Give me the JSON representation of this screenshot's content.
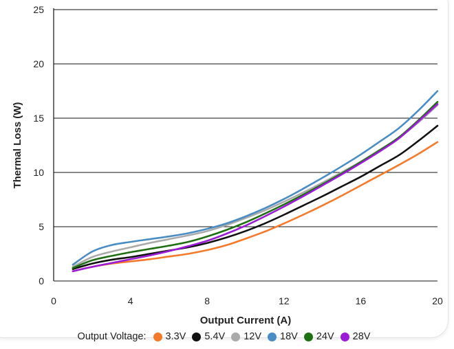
{
  "chart_data": {
    "type": "line",
    "xlabel": "Output Current (A)",
    "ylabel": "Thermal Loss (W)",
    "xlim": [
      0,
      20
    ],
    "ylim": [
      0,
      25
    ],
    "xticks": [
      "0",
      "4",
      "8",
      "12",
      "16",
      "20"
    ],
    "yticks": [
      "0",
      "5",
      "10",
      "15",
      "20",
      "25"
    ],
    "grid": "horizontal",
    "legend": {
      "title": "Output Voltage:",
      "placement": "bottom"
    },
    "x": [
      1,
      2,
      3,
      4,
      5,
      6,
      7,
      8,
      9,
      10,
      11,
      12,
      13,
      14,
      15,
      16,
      17,
      18,
      19,
      20
    ],
    "series": [
      {
        "name": "3.3V",
        "color": "#f47a2a",
        "values": [
          0.9,
          1.3,
          1.6,
          1.8,
          2.0,
          2.25,
          2.5,
          2.85,
          3.3,
          3.9,
          4.55,
          5.3,
          6.1,
          6.95,
          7.85,
          8.8,
          9.75,
          10.7,
          11.7,
          12.8
        ]
      },
      {
        "name": "5.4V",
        "color": "#111111",
        "values": [
          1.1,
          1.6,
          1.95,
          2.2,
          2.5,
          2.8,
          3.1,
          3.5,
          4.0,
          4.6,
          5.3,
          6.1,
          6.95,
          7.8,
          8.7,
          9.6,
          10.6,
          11.6,
          12.9,
          14.3
        ]
      },
      {
        "name": "12V",
        "color": "#aaaaaa",
        "values": [
          1.3,
          2.2,
          2.7,
          3.1,
          3.5,
          3.85,
          4.2,
          4.6,
          5.15,
          5.8,
          6.5,
          7.3,
          8.15,
          9.05,
          10.0,
          11.0,
          12.1,
          13.2,
          14.6,
          16.2
        ]
      },
      {
        "name": "18V",
        "color": "#4a8cc4",
        "values": [
          1.5,
          2.7,
          3.3,
          3.6,
          3.85,
          4.1,
          4.4,
          4.8,
          5.3,
          5.95,
          6.7,
          7.55,
          8.5,
          9.5,
          10.55,
          11.65,
          12.85,
          14.1,
          15.7,
          17.5
        ]
      },
      {
        "name": "24V",
        "color": "#1e6e12",
        "values": [
          1.2,
          1.9,
          2.3,
          2.65,
          2.95,
          3.25,
          3.6,
          4.1,
          4.7,
          5.4,
          6.2,
          7.05,
          7.95,
          8.9,
          9.9,
          10.95,
          12.05,
          13.25,
          14.8,
          16.5
        ]
      },
      {
        "name": "28V",
        "color": "#9b1bd6",
        "values": [
          0.9,
          1.3,
          1.65,
          2.0,
          2.35,
          2.75,
          3.2,
          3.7,
          4.35,
          5.1,
          5.95,
          6.85,
          7.8,
          8.8,
          9.8,
          10.85,
          11.95,
          13.15,
          14.7,
          16.3
        ]
      }
    ]
  }
}
